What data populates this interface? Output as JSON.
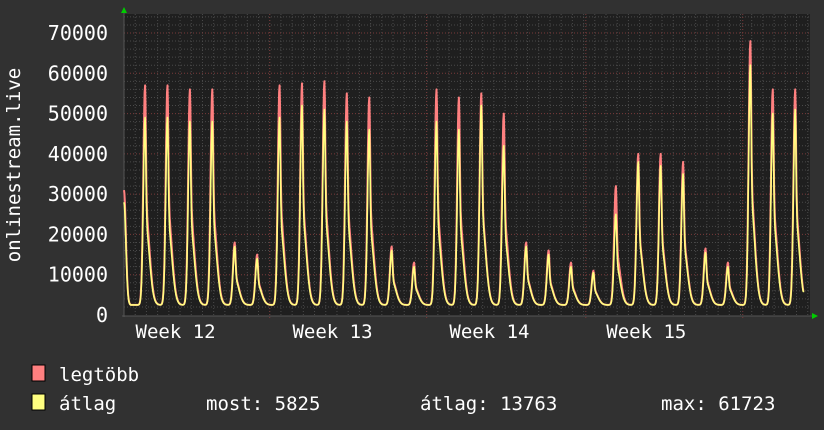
{
  "chart_data": {
    "type": "line",
    "title": "",
    "ylabel": "onlinestream.live",
    "xlabel": "",
    "ylim": [
      0,
      70000
    ],
    "xlim_days": [
      0,
      30.6
    ],
    "y_ticks": [
      0,
      10000,
      20000,
      30000,
      40000,
      50000,
      60000,
      70000
    ],
    "y_tick_labels": [
      "0",
      "10000",
      "20000",
      "30000",
      "40000",
      "50000",
      "60000",
      "70000"
    ],
    "x_tick_labels": [
      {
        "label": "Week 12",
        "day": 2.3
      },
      {
        "label": "Week 13",
        "day": 9.3
      },
      {
        "label": "Week 14",
        "day": 16.3
      },
      {
        "label": "Week 15",
        "day": 23.3
      }
    ],
    "week_boundaries_days": [
      6.5,
      13.5,
      20.6,
      27.6
    ],
    "grid": true,
    "daily_peak_time_offset_days": 0.94,
    "baseline_min": 2500,
    "series": [
      {
        "name": "legtöbb",
        "color": "#ff8080",
        "start_value": 31000,
        "end_value": 6000,
        "daily_peaks": [
          57000,
          57000,
          56000,
          56000,
          18000,
          15000,
          57000,
          57500,
          58000,
          55000,
          54000,
          17000,
          13000,
          56000,
          54000,
          55000,
          50000,
          18000,
          16000,
          13000,
          11000,
          32000,
          40000,
          40000,
          38000,
          16500,
          13000,
          68000,
          56000,
          56000
        ]
      },
      {
        "name": "átlag",
        "color": "#ffff80",
        "start_value": 28000,
        "end_value": 5825,
        "daily_peaks": [
          49000,
          49000,
          48000,
          48000,
          17000,
          14000,
          49000,
          52000,
          51000,
          48000,
          46000,
          16000,
          12000,
          48000,
          46000,
          52000,
          42000,
          17000,
          15000,
          12000,
          10500,
          25000,
          38000,
          37000,
          35000,
          15500,
          12000,
          62000,
          50000,
          51000
        ]
      }
    ],
    "legend": {
      "position": "bottom-left",
      "items": [
        {
          "label": "legtöbb",
          "color": "#ff8080"
        },
        {
          "label": "átlag",
          "color": "#ffff80"
        }
      ],
      "stats": {
        "current": "most: 5825",
        "average": "átlag: 13763",
        "maximum": "max: 61723"
      }
    }
  }
}
